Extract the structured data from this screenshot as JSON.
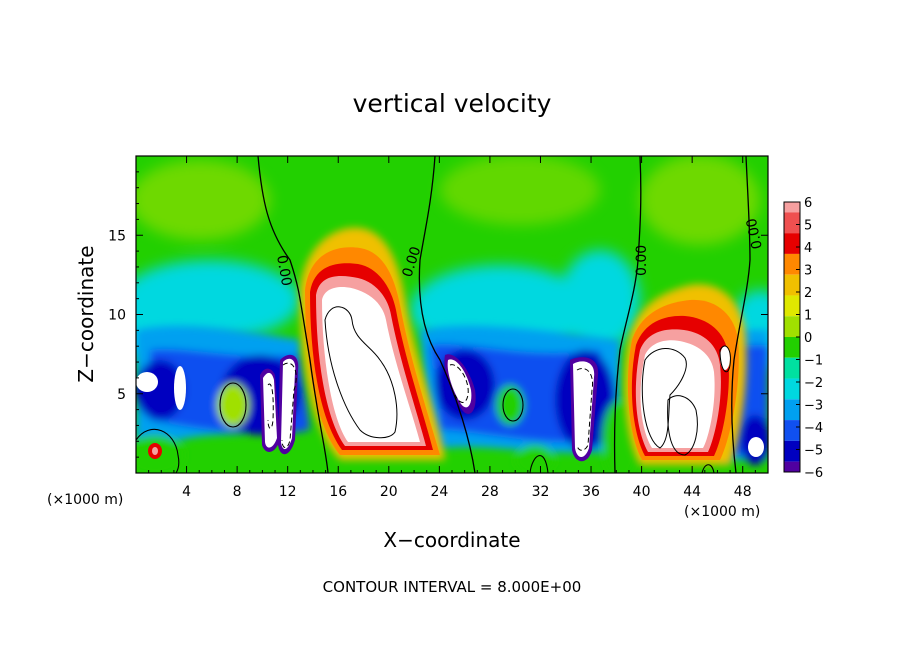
{
  "chart_data": {
    "type": "heatmap",
    "title": "vertical velocity",
    "xlabel": "X−coordinate",
    "ylabel": "Z−coordinate",
    "x_unit_left": "(×1000 m)",
    "x_unit_right": "(×1000 m)",
    "xlim": [
      0,
      50
    ],
    "ylim": [
      0,
      20
    ],
    "x_ticks": [
      4,
      8,
      12,
      16,
      20,
      24,
      28,
      32,
      36,
      40,
      44,
      48
    ],
    "y_ticks": [
      5,
      10,
      15
    ],
    "colorbar": {
      "ticks": [
        6,
        5,
        4,
        3,
        2,
        1,
        0,
        -1,
        -2,
        -3,
        -4,
        -5,
        -6
      ],
      "tick_labels": [
        "6",
        "5",
        "4",
        "3",
        "2",
        "1",
        "0",
        "−1",
        "−2",
        "−3",
        "−4",
        "−5",
        "−6"
      ],
      "colors": [
        "#f6a0a0",
        "#ef5050",
        "#e60000",
        "#ff8800",
        "#f0c000",
        "#dfe800",
        "#a0e000",
        "#22d000",
        "#00e0a0",
        "#00d8e0",
        "#00a0f0",
        "#1050f0",
        "#0000c0",
        "#5000a0"
      ]
    },
    "contour_interval_note": "CONTOUR INTERVAL = 8.000E+00",
    "contour_labels": [
      "0.00",
      "0.00",
      "0.00",
      "0.00"
    ],
    "features": [
      {
        "name": "updraft",
        "x": 18.5,
        "z": 7.5,
        "w": 10
      },
      {
        "name": "updraft",
        "x": 43.0,
        "z": 5.0,
        "w": 9
      },
      {
        "name": "downdraft",
        "x": 10.5,
        "z": 4.0,
        "w": -8
      },
      {
        "name": "downdraft",
        "x": 26.5,
        "z": 5.0,
        "w": -7
      },
      {
        "name": "downdraft",
        "x": 35.0,
        "z": 4.5,
        "w": -7
      },
      {
        "name": "downdraft",
        "x": 1.0,
        "z": 5.5,
        "w": -6
      },
      {
        "name": "downdraft",
        "x": 49.0,
        "z": 2.0,
        "w": -6
      }
    ]
  }
}
